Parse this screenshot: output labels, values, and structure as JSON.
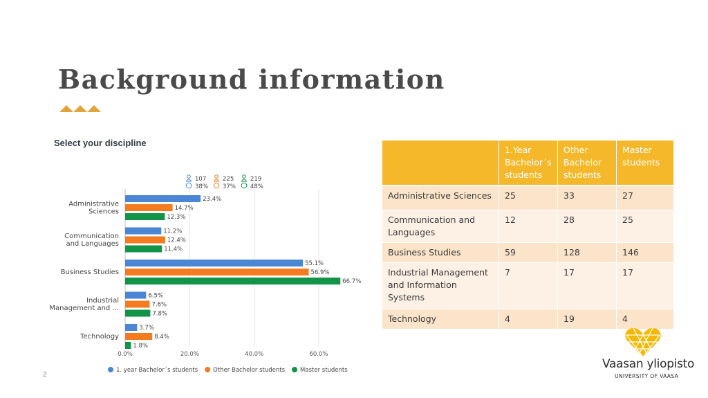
{
  "slide": {
    "title": "Background information",
    "page_number": "2",
    "accent_color": "#e2a33b"
  },
  "chart_data": {
    "type": "bar",
    "orientation": "horizontal",
    "title": "Select your discipline",
    "categories": [
      [
        "Administrative",
        "Sciences"
      ],
      [
        "Communication",
        "and Languages"
      ],
      [
        "Business Studies"
      ],
      [
        "Industrial",
        "Management and ..."
      ],
      [
        "Technology"
      ]
    ],
    "series": [
      {
        "name": "1. year Bachelor´s students",
        "color": "#4a86d4",
        "values": [
          23.4,
          11.2,
          55.1,
          6.5,
          3.7
        ],
        "labels": [
          "23.4%",
          "11.2%",
          "55.1%",
          "6.5%",
          "3.7%"
        ],
        "respondents": "107",
        "percent": "38%"
      },
      {
        "name": "Other Bachelor students",
        "color": "#f47b20",
        "values": [
          14.7,
          12.4,
          56.9,
          7.6,
          8.4
        ],
        "labels": [
          "14.7%",
          "12.4%",
          "56.9%",
          "7.6%",
          "8.4%"
        ],
        "respondents": "225",
        "percent": "37%"
      },
      {
        "name": "Master students",
        "color": "#119447",
        "values": [
          12.3,
          11.4,
          66.7,
          7.8,
          1.8
        ],
        "labels": [
          "12.3%",
          "11.4%",
          "66.7%",
          "7.8%",
          "1.8%"
        ],
        "respondents": "219",
        "percent": "48%"
      }
    ],
    "xticks": [
      0,
      20,
      40,
      60
    ],
    "xtick_labels": [
      "0.0%",
      "20.0%",
      "40.0%",
      "60.0%"
    ],
    "xlim": [
      0,
      60
    ],
    "grid": true,
    "legend": "bottom"
  },
  "table": {
    "headers": [
      "",
      "1.Year Bachelor´s students",
      "Other Bachelor students",
      "Master students"
    ],
    "rows": [
      [
        "Administrative Sciences",
        "25",
        "33",
        "27"
      ],
      [
        "Communication and Languages",
        "12",
        "28",
        "25"
      ],
      [
        "Business Studies",
        "59",
        "128",
        "146"
      ],
      [
        "Industrial Management and Information Systems",
        "7",
        "17",
        "17"
      ],
      [
        "Technology",
        "4",
        "19",
        "4"
      ]
    ],
    "header_color": "#f4b82a"
  },
  "logo": {
    "name": "Vaasan yliopisto",
    "subtitle": "UNIVERSITY OF VAASA",
    "color": "#f5b800"
  }
}
